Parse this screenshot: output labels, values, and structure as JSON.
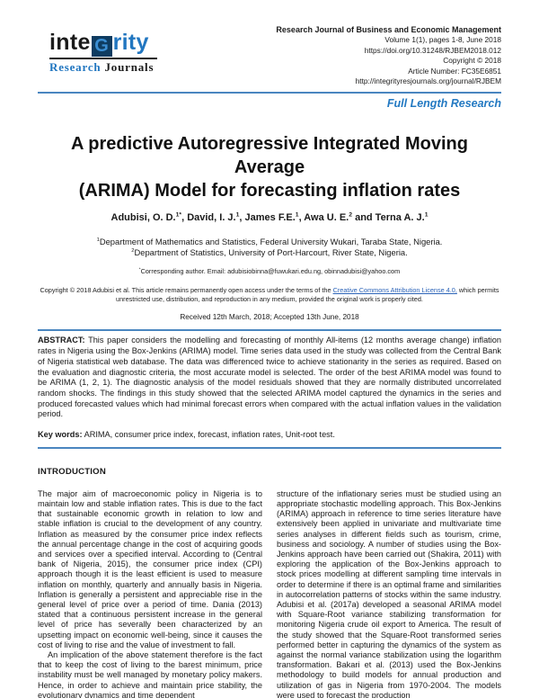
{
  "colors": {
    "accent_blue": "#4a86c0",
    "brand_blue": "#2176c0",
    "link_blue": "#2c64b8",
    "logo_box_bg": "#0e3c61"
  },
  "header": {
    "logo": {
      "part_inte": "inte",
      "part_g": "G",
      "part_rity": "rity",
      "sub_research": "Research",
      "sub_journals": "Journals"
    },
    "journal_info": {
      "journal_name": "Research Journal of Business and Economic Management",
      "volume_line": "Volume 1(1), pages 1-8, June 2018",
      "doi": "https://doi.org/10.31248/RJBEM2018.012",
      "copyright_line": "Copyright © 2018",
      "article_number": "Article Number: FC35E6851",
      "journal_url": "http://integrityresjournals.org/journal/RJBEM"
    },
    "article_type": "Full Length Research"
  },
  "article": {
    "title_line1": "A predictive Autoregressive Integrated Moving Average",
    "title_line2": "(ARIMA) Model for forecasting inflation rates",
    "authors": [
      {
        "name": "Adubisi, O. D.",
        "sup": "1*"
      },
      {
        "name": ", David, I. J.",
        "sup": "1"
      },
      {
        "name": ", James F.E.",
        "sup": "1"
      },
      {
        "name": ", Awa U. E.",
        "sup": "2"
      },
      {
        "name": " and Terna A. J.",
        "sup": "1"
      }
    ],
    "affiliations": [
      {
        "sup": "1",
        "text": "Department of Mathematics and Statistics, Federal University Wukari, Taraba State, Nigeria."
      },
      {
        "sup": "2",
        "text": "Department of Statistics, University of Port-Harcourt, River State, Nigeria."
      }
    ],
    "corresponding": {
      "sup": "*",
      "text": "Corresponding author. Email: adubisiobinna@fuwukari.edu.ng, obinnadubisi@yahoo.com"
    },
    "copyright_notice": {
      "before_link": "Copyright © 2018 Adubisi et al. This article remains permanently open access under the terms of the ",
      "link": "Creative Commons Attribution License 4.0,",
      "after_link": " which permits unrestricted use, distribution, and reproduction in any medium, provided the original work is properly cited."
    },
    "received": "Received 12th March, 2018; Accepted 13th June, 2018"
  },
  "abstract": {
    "label": "ABSTRACT:",
    "text": " This paper considers the modelling and forecasting of monthly All-items (12 months average change) inflation rates in Nigeria using the Box-Jenkins (ARIMA) model. Time series data used in the study was collected from the Central Bank of Nigeria statistical web database. The data was differenced twice to achieve stationarity in the series as required. Based on the evaluation and diagnostic criteria, the most accurate model is selected. The order of the best ARIMA model was found to be ARIMA (1, 2, 1). The diagnostic analysis of the model residuals showed that they are normally distributed uncorrelated random shocks. The findings in this study showed that the selected ARIMA model captured the dynamics in the series and produced forecasted values which had minimal forecast errors when compared with the actual inflation values in the validation period.",
    "keywords_label": "Key words:",
    "keywords": " ARIMA, consumer price index, forecast, inflation rates, Unit-root test."
  },
  "introduction": {
    "heading": "INTRODUCTION",
    "left_paragraphs": [
      "The major aim of macroeconomic policy in Nigeria is to maintain low and stable inflation rates. This is due to the fact that sustainable economic growth in relation to low and stable inflation is crucial to the development of any country. Inflation as measured by the consumer price index reflects the annual percentage change in the cost of acquiring goods and services over a specified interval. According to (Central bank of Nigeria, 2015), the consumer price index (CPI) approach though it is the least efficient is used to measure inflation on monthly, quarterly and annually basis in Nigeria. Inflation is generally a persistent and appreciable rise in the general level of price over a period of time. Dania (2013) stated that a continuous persistent increase in the general level of price has severally been characterized by an upsetting impact on economic well-being, since it causes the cost of living to rise and the value of investment to fall.",
      "An implication of the above statement therefore is the fact that to keep the cost of living to the barest minimum, price instability must be well managed by monetary policy makers. Hence, in order to achieve and maintain price stability, the evolutionary dynamics and time dependent"
    ],
    "right_paragraphs": [
      "structure of the inflationary series must be studied using an appropriate stochastic modelling approach. This Box-Jenkins (ARIMA) approach in reference to time series literature have extensively been applied in univariate and multivariate time series analyses in different fields such as tourism, crime, business and sociology. A number of studies using the Box-Jenkins approach have been carried out (Shakira, 2011) with exploring the application of the Box-Jenkins approach to stock prices modelling at different sampling time intervals in order to determine if there is an optimal frame and similarities in autocorrelation patterns of stocks within the same industry. Adubisi et al. (2017a) developed a seasonal ARIMA model with Square-Root variance stabilizing transformation for monitoring Nigeria crude oil export to America. The result of the study showed that the Square-Root transformed series performed better in capturing the dynamics of the system as against the normal variance stabilization using the logarithm transformation. Bakari et al. (2013) used the Box-Jenkins methodology to build models for annual production and utilization of gas in Nigeria from 1970-2004. The models were used to forecast the production"
    ]
  }
}
